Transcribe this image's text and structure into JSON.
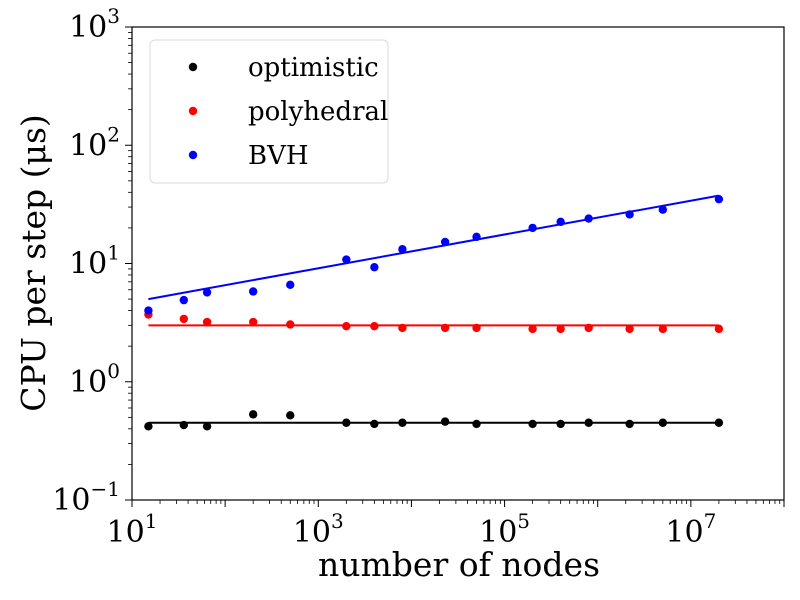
{
  "chart_data": {
    "type": "scatter",
    "title": "",
    "xlabel": "number of nodes",
    "ylabel": "CPU per step (μs)",
    "xscale": "log",
    "yscale": "log",
    "xlim": [
      10,
      100000000
    ],
    "ylim": [
      0.1,
      1000
    ],
    "x_ticks": [
      {
        "base": "10",
        "exp": "1",
        "value": 10
      },
      {
        "base": "10",
        "exp": "3",
        "value": 1000
      },
      {
        "base": "10",
        "exp": "5",
        "value": 100000
      },
      {
        "base": "10",
        "exp": "7",
        "value": 10000000
      }
    ],
    "y_ticks": [
      {
        "base": "10",
        "exp": "−1",
        "value": 0.1
      },
      {
        "base": "10",
        "exp": "0",
        "value": 1
      },
      {
        "base": "10",
        "exp": "1",
        "value": 10
      },
      {
        "base": "10",
        "exp": "2",
        "value": 100
      },
      {
        "base": "10",
        "exp": "3",
        "value": 1000
      }
    ],
    "x": [
      15,
      36,
      64,
      200,
      500,
      2000,
      4000,
      8000,
      23000,
      50000,
      200000,
      400000,
      800000,
      2200000,
      5000000,
      20000000
    ],
    "legend_position": "upper-left",
    "series": [
      {
        "name": "optimistic",
        "color": "#000000",
        "values": [
          0.42,
          0.43,
          0.42,
          0.53,
          0.52,
          0.45,
          0.44,
          0.45,
          0.46,
          0.44,
          0.44,
          0.44,
          0.45,
          0.44,
          0.45,
          0.45
        ],
        "fit": [
          [
            15,
            0.45
          ],
          [
            20000000,
            0.45
          ]
        ]
      },
      {
        "name": "polyhedral",
        "color": "#ff0000",
        "values": [
          3.7,
          3.4,
          3.2,
          3.2,
          3.05,
          2.95,
          2.95,
          2.85,
          2.85,
          2.85,
          2.8,
          2.8,
          2.85,
          2.8,
          2.8,
          2.8
        ],
        "fit": [
          [
            15,
            3.0
          ],
          [
            20000000,
            3.0
          ]
        ]
      },
      {
        "name": "BVH",
        "color": "#0000ff",
        "values": [
          4.0,
          4.9,
          5.7,
          5.8,
          6.6,
          10.8,
          9.3,
          13.2,
          15.2,
          16.8,
          20.0,
          22.5,
          24.0,
          26.0,
          28.5,
          35.0
        ],
        "fit": [
          [
            15,
            5.0
          ],
          [
            20000000,
            37.5
          ]
        ]
      }
    ]
  }
}
